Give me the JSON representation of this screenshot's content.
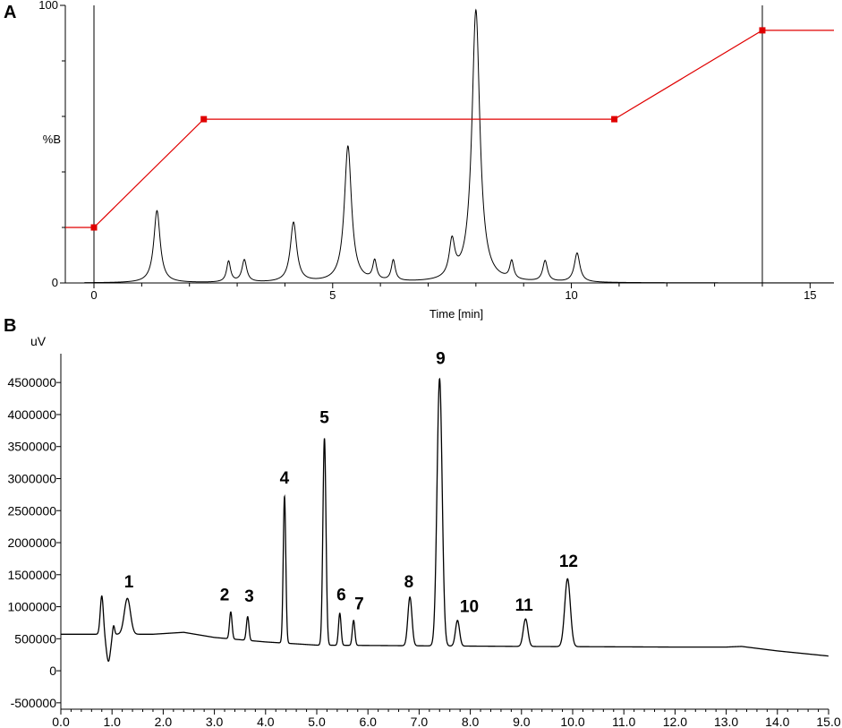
{
  "panel_a": {
    "letter": "A"
  },
  "panel_b": {
    "letter": "B"
  },
  "chart_data": [
    {
      "type": "line",
      "panel": "A",
      "xlabel": "Time [min]",
      "ylabel": "%B",
      "xlim": [
        -0.6,
        15.5
      ],
      "ylim": [
        0,
        100
      ],
      "x_ticks": [
        0,
        5,
        10,
        15
      ],
      "y_ticks": [
        0,
        100
      ],
      "grid": false,
      "series": [
        {
          "role": "gradient",
          "color": "#e00000",
          "points": [
            [
              -0.6,
              20
            ],
            [
              0,
              20
            ],
            [
              2.3,
              59
            ],
            [
              10.9,
              59
            ],
            [
              14.0,
              91
            ],
            [
              15.5,
              91
            ]
          ],
          "markers": [
            [
              0,
              20
            ],
            [
              2.3,
              59
            ],
            [
              10.9,
              59
            ],
            [
              14.0,
              91
            ]
          ]
        },
        {
          "role": "chromatogram",
          "color": "#000000",
          "peaks": [
            {
              "t": 1.32,
              "h": 26,
              "w": 0.08
            },
            {
              "t": 2.82,
              "h": 7.5,
              "w": 0.05
            },
            {
              "t": 3.15,
              "h": 8,
              "w": 0.06
            },
            {
              "t": 4.18,
              "h": 21.5,
              "w": 0.08
            },
            {
              "t": 5.32,
              "h": 49,
              "w": 0.09
            },
            {
              "t": 5.88,
              "h": 7,
              "w": 0.05
            },
            {
              "t": 6.27,
              "h": 7.5,
              "w": 0.05
            },
            {
              "t": 7.5,
              "h": 13,
              "w": 0.07
            },
            {
              "t": 8.0,
              "h": 98,
              "w": 0.1
            },
            {
              "t": 8.75,
              "h": 6.5,
              "w": 0.05
            },
            {
              "t": 9.45,
              "h": 7.5,
              "w": 0.06
            },
            {
              "t": 10.12,
              "h": 10.5,
              "w": 0.07
            }
          ]
        }
      ],
      "vertical_lines": [
        0,
        14.0
      ]
    },
    {
      "type": "line",
      "panel": "B",
      "ylabel": "uV",
      "xlabel": "",
      "xlim": [
        0,
        15.0
      ],
      "ylim": [
        -600000,
        4950000
      ],
      "x_ticks": [
        "0.0",
        "1.0",
        "2.0",
        "3.0",
        "4.0",
        "5.0",
        "6.0",
        "7.0",
        "8.0",
        "9.0",
        "10.0",
        "11.0",
        "12.0",
        "13.0",
        "14.0",
        "15.0"
      ],
      "y_ticks": [
        "-500000",
        "0",
        "500000",
        "1000000",
        "1500000",
        "2000000",
        "2500000",
        "3000000",
        "3500000",
        "4000000",
        "4500000"
      ],
      "series": [
        {
          "color": "#000000",
          "baseline": [
            [
              0,
              570000
            ],
            [
              0.7,
              570000
            ],
            [
              1.8,
              570000
            ],
            [
              2.4,
              600000
            ],
            [
              3.0,
              520000
            ],
            [
              4.0,
              450000
            ],
            [
              5.0,
              400000
            ],
            [
              7.0,
              390000
            ],
            [
              9.0,
              380000
            ],
            [
              12.0,
              370000
            ],
            [
              13.0,
              370000
            ],
            [
              13.3,
              380000
            ],
            [
              14.0,
              310000
            ],
            [
              15.0,
              230000
            ]
          ],
          "peaks": [
            {
              "t": 0.8,
              "h": 600000,
              "w": 0.03
            },
            {
              "t": 0.93,
              "h": -420000,
              "w": 0.04
            },
            {
              "t": 1.03,
              "h": 150000,
              "w": 0.02
            },
            {
              "t": 1.3,
              "h": 560000,
              "w": 0.06
            },
            {
              "t": 3.32,
              "h": 420000,
              "w": 0.025
            },
            {
              "t": 3.65,
              "h": 370000,
              "w": 0.025
            },
            {
              "t": 4.37,
              "h": 2290000,
              "w": 0.025
            },
            {
              "t": 5.15,
              "h": 3230000,
              "w": 0.03
            },
            {
              "t": 5.45,
              "h": 500000,
              "w": 0.025
            },
            {
              "t": 5.72,
              "h": 390000,
              "w": 0.025
            },
            {
              "t": 6.82,
              "h": 760000,
              "w": 0.04
            },
            {
              "t": 7.4,
              "h": 4170000,
              "w": 0.05
            },
            {
              "t": 7.75,
              "h": 400000,
              "w": 0.04
            },
            {
              "t": 9.08,
              "h": 430000,
              "w": 0.045
            },
            {
              "t": 9.9,
              "h": 1060000,
              "w": 0.055
            }
          ],
          "truncate_above": 4560000
        }
      ],
      "peak_labels": [
        {
          "text": "1",
          "t": 1.33,
          "y": 1300000
        },
        {
          "text": "2",
          "t": 3.2,
          "y": 1100000
        },
        {
          "text": "3",
          "t": 3.68,
          "y": 1080000
        },
        {
          "text": "4",
          "t": 4.37,
          "y": 2920000
        },
        {
          "text": "5",
          "t": 5.15,
          "y": 3870000
        },
        {
          "text": "6",
          "t": 5.48,
          "y": 1100000
        },
        {
          "text": "7",
          "t": 5.83,
          "y": 960000
        },
        {
          "text": "8",
          "t": 6.8,
          "y": 1300000
        },
        {
          "text": "9",
          "t": 7.42,
          "y": 4790000
        },
        {
          "text": "10",
          "t": 7.98,
          "y": 920000
        },
        {
          "text": "11",
          "t": 9.05,
          "y": 940000
        },
        {
          "text": "12",
          "t": 9.92,
          "y": 1620000
        }
      ]
    }
  ]
}
